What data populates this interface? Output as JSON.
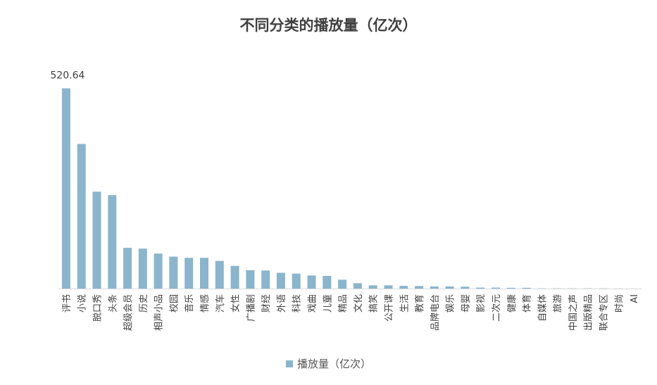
{
  "chart_data": {
    "type": "bar",
    "title": "不同分类的播放量（亿次）",
    "categories": [
      "评书",
      "小说",
      "脱口秀",
      "头条",
      "超级会员",
      "历史",
      "相声小品",
      "校园",
      "音乐",
      "情感",
      "汽车",
      "女性",
      "广播剧",
      "财经",
      "外语",
      "科技",
      "戏曲",
      "儿童",
      "精品",
      "文化",
      "搞笑",
      "公开课",
      "生活",
      "教育",
      "品牌电台",
      "娱乐",
      "母婴",
      "影视",
      "二次元",
      "健康",
      "体育",
      "自媒体",
      "旅游",
      "中国之声",
      "出版精品",
      "联合专区",
      "时尚",
      "AI"
    ],
    "series": [
      {
        "name": "播放量（亿次）",
        "color": "#8ab5cc",
        "values": [
          520.64,
          376,
          252,
          243,
          106,
          104,
          91,
          83,
          80,
          80,
          72,
          59,
          48,
          47,
          41,
          39,
          34,
          33,
          23,
          14,
          8.5,
          8.5,
          7,
          6.5,
          5.5,
          5.5,
          5,
          2.5,
          2.5,
          2,
          2,
          0.5,
          0.5,
          0.5,
          0.5,
          0.5,
          0.3,
          0.2
        ]
      }
    ],
    "data_labels": [
      {
        "index": 0,
        "text": "520.64"
      }
    ],
    "ylim": [
      0,
      560
    ],
    "grid": false,
    "legend_position": "bottom"
  }
}
